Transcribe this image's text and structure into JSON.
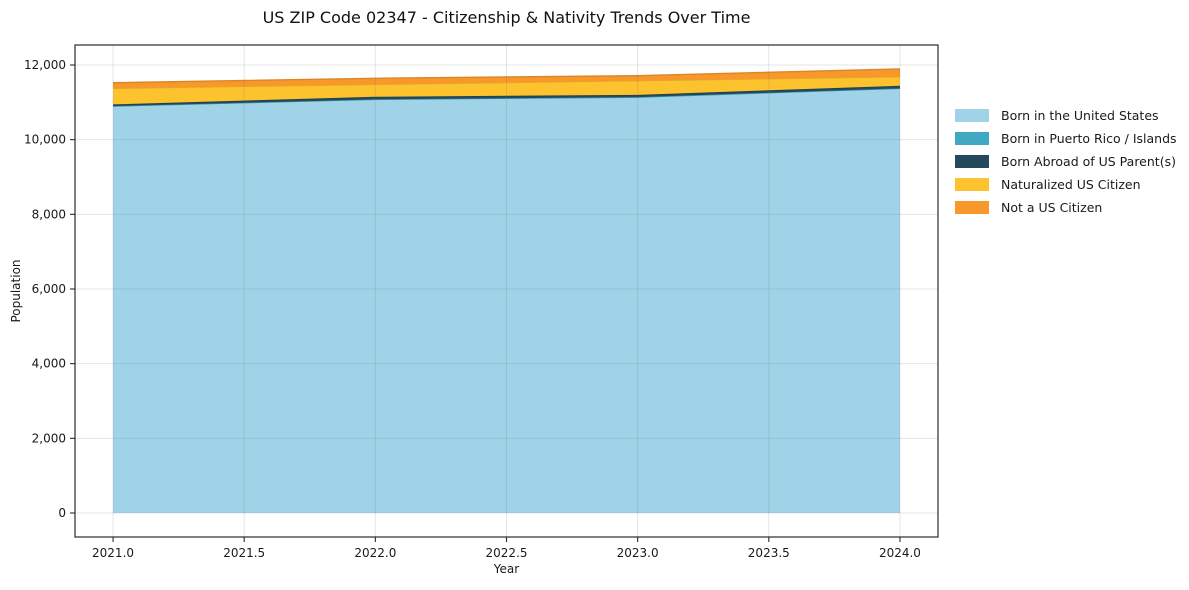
{
  "chart_data": {
    "type": "area",
    "stacked": true,
    "title": "US ZIP Code 02347 - Citizenship & Nativity Trends Over Time",
    "xlabel": "Year",
    "ylabel": "Population",
    "x": [
      2021,
      2022,
      2023,
      2024
    ],
    "series": [
      {
        "name": "Born in the United States",
        "color": "#A0D2E8",
        "values": [
          10900,
          11080,
          11140,
          11375
        ]
      },
      {
        "name": "Born in Puerto Rico / Islands",
        "color": "#3FA9C4",
        "values": [
          0,
          0,
          0,
          0
        ]
      },
      {
        "name": "Born Abroad of US Parent(s)",
        "color": "#24485C",
        "values": [
          45,
          70,
          60,
          70
        ]
      },
      {
        "name": "Naturalized US Citizen",
        "color": "#FCC32E",
        "values": [
          430,
          330,
          380,
          240
        ]
      },
      {
        "name": "Not a US Citizen",
        "color": "#F8982B",
        "values": [
          150,
          165,
          135,
          210
        ]
      }
    ],
    "stack_totals": [
      11525,
      11645,
      11715,
      11895
    ],
    "xticks": {
      "values": [
        2021.0,
        2021.5,
        2022.0,
        2022.5,
        2023.0,
        2023.5,
        2024.0
      ],
      "labels": [
        "2021.0",
        "2021.5",
        "2022.0",
        "2022.5",
        "2023.0",
        "2023.5",
        "2024.0"
      ]
    },
    "yticks": {
      "values": [
        0,
        2000,
        4000,
        6000,
        8000,
        10000,
        12000
      ],
      "labels": [
        "0",
        "2,000",
        "4,000",
        "6,000",
        "8,000",
        "10,000",
        "12,000"
      ]
    },
    "xlim": [
      2020.855,
      2024.145
    ],
    "ylim": [
      -643,
      12536
    ],
    "grid": true,
    "legend_position": "right-of-plot",
    "background_color": "#ffffff",
    "spine_color": "#2b2b2b",
    "grid_color": "rgba(110,110,110,0.18)",
    "text_color": "#1a1a1a"
  }
}
